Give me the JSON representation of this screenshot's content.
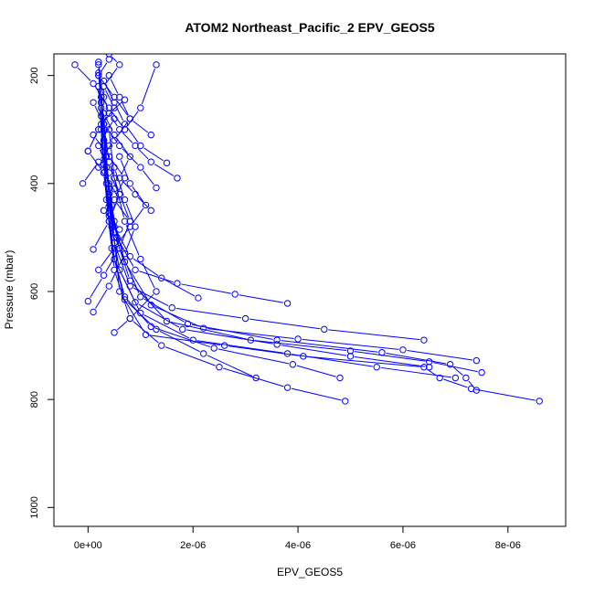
{
  "chart_data": {
    "type": "line",
    "title": "ATOM2 Northeast_Pacific_2 EPV_GEOS5",
    "xlabel": "EPV_GEOS5",
    "ylabel": "Pressure (mbar)",
    "xlim": [
      -6.5e-07,
      9.1e-06
    ],
    "ylim": [
      1035,
      160
    ],
    "y_inverted": true,
    "x_ticks": [
      0,
      2e-06,
      4e-06,
      6e-06,
      8e-06
    ],
    "x_tick_labels": [
      "0e+00",
      "2e-06",
      "4e-06",
      "6e-06",
      "8e-06"
    ],
    "y_ticks": [
      200,
      400,
      600,
      800,
      1000
    ],
    "y_tick_labels": [
      "200",
      "400",
      "600",
      "800",
      "1000"
    ],
    "grid": false,
    "legend": "none",
    "series_color": "#0000ff",
    "marker": "open-circle",
    "series": [
      {
        "x": [
          8.6e-06,
          7.3e-06,
          6.7e-06,
          6.4e-06,
          4.1e-06,
          2.6e-06,
          1.1e-06,
          6e-07,
          5e-07,
          4e-07,
          3.5e-07,
          3e-07,
          2.5e-07,
          2e-07
        ],
        "y": [
          803,
          780,
          760,
          740,
          720,
          700,
          680,
          600,
          500,
          420,
          350,
          290,
          230,
          175
        ]
      },
      {
        "x": [
          7.4e-06,
          7.2e-06,
          6.9e-06,
          5.6e-06,
          3.6e-06,
          1.9e-06,
          1e-06,
          6e-07,
          4.5e-07,
          3.5e-07,
          3e-07,
          2.5e-07,
          2e-07
        ],
        "y": [
          783,
          760,
          735,
          713,
          690,
          660,
          610,
          520,
          440,
          370,
          300,
          240,
          180
        ]
      },
      {
        "x": [
          7.5e-06,
          6.5e-06,
          5e-06,
          3.1e-06,
          1.5e-06,
          8e-07,
          5e-07,
          4e-07,
          3e-07,
          2.5e-07,
          2e-07
        ],
        "y": [
          750,
          730,
          710,
          690,
          655,
          580,
          490,
          410,
          330,
          260,
          195
        ]
      },
      {
        "x": [
          7.4e-06,
          6e-06,
          4e-06,
          2.2e-06,
          1.2e-06,
          7e-07,
          5e-07,
          4e-07,
          3e-07,
          2.5e-07
        ],
        "y": [
          728,
          708,
          688,
          668,
          625,
          545,
          470,
          400,
          320,
          250
        ]
      },
      {
        "x": [
          7e-06,
          5.5e-06,
          3.8e-06,
          2e-06,
          1e-06,
          6e-07,
          4.5e-07,
          3.5e-07,
          3e-07,
          2.5e-07
        ],
        "y": [
          760,
          740,
          715,
          690,
          640,
          560,
          480,
          400,
          320,
          240
        ]
      },
      {
        "x": [
          6.5e-06,
          5e-06,
          3.6e-06,
          1.8e-06,
          9e-07,
          5e-07,
          4e-07,
          3e-07,
          2.5e-07,
          2e-07
        ],
        "y": [
          740,
          720,
          698,
          670,
          620,
          540,
          460,
          380,
          300,
          220
        ]
      },
      {
        "x": [
          6.4e-06,
          4.5e-06,
          3e-06,
          1.6e-06,
          8e-07,
          5e-07,
          4e-07,
          3.5e-07,
          3e-07
        ],
        "y": [
          690,
          670,
          650,
          630,
          590,
          510,
          430,
          350,
          270
        ]
      },
      {
        "x": [
          4.9e-06,
          3.8e-06,
          2.5e-06,
          1.4e-06,
          8e-07,
          5e-07,
          4e-07,
          3e-07,
          2.5e-07
        ],
        "y": [
          803,
          778,
          740,
          700,
          650,
          560,
          470,
          380,
          290
        ]
      },
      {
        "x": [
          4.8e-06,
          3.9e-06,
          2.4e-06,
          1.2e-06,
          7e-07,
          4.5e-07,
          3.5e-07,
          3e-07
        ],
        "y": [
          760,
          735,
          705,
          665,
          610,
          520,
          430,
          340
        ]
      },
      {
        "x": [
          3.2e-06,
          2.2e-06,
          1.3e-06,
          7e-07,
          5e-07,
          4e-07,
          3e-07,
          2.5e-07
        ],
        "y": [
          760,
          715,
          670,
          615,
          540,
          455,
          365,
          275
        ]
      },
      {
        "x": [
          3.8e-06,
          2.8e-06,
          1.7e-06,
          9e-07,
          5.5e-07,
          4e-07,
          3e-07
        ],
        "y": [
          622,
          605,
          585,
          560,
          500,
          420,
          330
        ]
      },
      {
        "x": [
          2.1e-06,
          1.4e-06,
          8e-07,
          5e-07,
          4e-07,
          3e-07,
          2.5e-07
        ],
        "y": [
          612,
          575,
          535,
          480,
          410,
          330,
          250
        ]
      },
      {
        "x": [
          5e-07,
          8e-07,
          1.3e-06,
          1e-06,
          7e-07,
          5e-07,
          4e-07
        ],
        "y": [
          676,
          650,
          600,
          540,
          470,
          390,
          300
        ]
      },
      {
        "x": [
          0.0,
          3e-07,
          6e-07,
          8e-07,
          6e-07,
          4e-07,
          3e-07
        ],
        "y": [
          618,
          570,
          520,
          470,
          420,
          360,
          290
        ]
      },
      {
        "x": [
          1e-07,
          4e-07,
          7e-07,
          9e-07,
          7e-07,
          5e-07
        ],
        "y": [
          638,
          590,
          530,
          480,
          430,
          370
        ]
      },
      {
        "x": [
          1.7e-06,
          1.2e-06,
          9e-07,
          6e-07,
          4e-07,
          3e-07,
          2e-07
        ],
        "y": [
          390,
          360,
          330,
          300,
          270,
          240,
          200
        ]
      },
      {
        "x": [
          1.5e-06,
          1e-06,
          7e-07,
          5e-07,
          3e-07
        ],
        "y": [
          362,
          330,
          290,
          250,
          210
        ]
      },
      {
        "x": [
          -2.5e-07,
          1e-07,
          4e-07,
          7e-07,
          1e-06,
          1.3e-06
        ],
        "y": [
          180,
          215,
          260,
          300,
          260,
          180
        ]
      },
      {
        "x": [
          -1e-07,
          2e-07,
          5e-07,
          8e-07,
          6e-07,
          4e-07
        ],
        "y": [
          400,
          360,
          320,
          280,
          240,
          200
        ]
      },
      {
        "x": [
          0.0,
          2e-07,
          5e-07,
          3e-07,
          6e-07,
          4e-07
        ],
        "y": [
          340,
          300,
          260,
          220,
          180,
          160
        ]
      },
      {
        "x": [
          1e-07,
          4e-07,
          6e-07,
          4e-07,
          2e-07,
          5e-07
        ],
        "y": [
          522,
          470,
          420,
          380,
          330,
          280
        ]
      },
      {
        "x": [
          1.2e-06,
          9e-07,
          6e-07,
          8e-07,
          5e-07,
          3e-07
        ],
        "y": [
          450,
          420,
          390,
          350,
          310,
          270
        ]
      },
      {
        "x": [
          2e-07,
          5e-07,
          8e-07,
          1.1e-06,
          8e-07,
          6e-07
        ],
        "y": [
          560,
          520,
          480,
          440,
          400,
          350
        ]
      },
      {
        "x": [
          1.3e-06,
          1e-06,
          6e-07,
          3e-07,
          1e-07
        ],
        "y": [
          408,
          370,
          330,
          290,
          250
        ]
      },
      {
        "x": [
          1.2e-06,
          8e-07,
          5e-07,
          2e-07,
          4e-07
        ],
        "y": [
          310,
          280,
          240,
          200,
          170
        ]
      },
      {
        "x": [
          7e-07,
          4e-07,
          2e-07,
          0.0,
          3e-07,
          6e-07
        ],
        "y": [
          245,
          270,
          300,
          340,
          380,
          430
        ]
      },
      {
        "x": [
          6e-07,
          3e-07,
          5e-07,
          2e-07,
          4e-07
        ],
        "y": [
          485,
          450,
          410,
          370,
          330
        ]
      },
      {
        "x": [
          8e-07,
          5e-07,
          7e-07,
          4e-07,
          1e-07
        ],
        "y": [
          470,
          430,
          390,
          350,
          310
        ]
      }
    ]
  }
}
